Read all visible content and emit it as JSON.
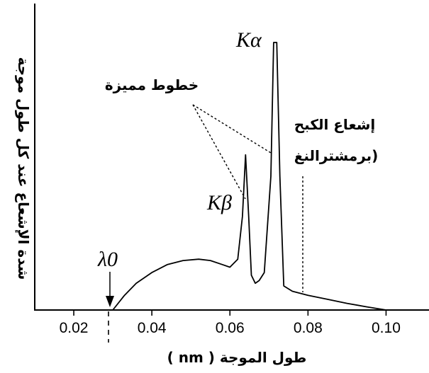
{
  "chart_data": {
    "type": "line",
    "xlabel": "طول الموجة ( nm )",
    "ylabel": "شدة الإشعاع عند كل طول موجة",
    "xlim": [
      0.01,
      0.111
    ],
    "x_ticks": [
      {
        "value": 0.02,
        "label": "0.02"
      },
      {
        "value": 0.04,
        "label": "0.04"
      },
      {
        "value": 0.06,
        "label": "0.06"
      },
      {
        "value": 0.08,
        "label": "0.08"
      },
      {
        "value": 0.1,
        "label": "0.10"
      }
    ],
    "series": [
      {
        "x": [
          0.03,
          0.033,
          0.036,
          0.04,
          0.044,
          0.048,
          0.052,
          0.055,
          0.058,
          0.06,
          0.062,
          0.0632,
          0.064,
          0.0648,
          0.0655,
          0.0665,
          0.0675,
          0.0688,
          0.0705,
          0.0712,
          0.072,
          0.0728,
          0.0738,
          0.076,
          0.08,
          0.085,
          0.09,
          0.095,
          0.1
        ],
        "y": [
          0.0,
          0.055,
          0.1,
          0.14,
          0.17,
          0.185,
          0.19,
          0.185,
          0.17,
          0.16,
          0.19,
          0.35,
          0.58,
          0.35,
          0.13,
          0.1,
          0.11,
          0.14,
          0.5,
          1.0,
          1.0,
          0.5,
          0.09,
          0.07,
          0.055,
          0.04,
          0.025,
          0.012,
          0.0
        ]
      }
    ],
    "annotations": [
      {
        "text": "Kα",
        "x": 0.0692,
        "y": 1.02
      },
      {
        "text": "Kβ",
        "x": 0.0612,
        "y": 0.6
      },
      {
        "text": "خطوط مميزة"
      },
      {
        "text": "إشعاع الكبح"
      },
      {
        "text": "(برمشترالنغ"
      },
      {
        "text": "λ0",
        "x": 0.03
      }
    ],
    "grid": false
  }
}
